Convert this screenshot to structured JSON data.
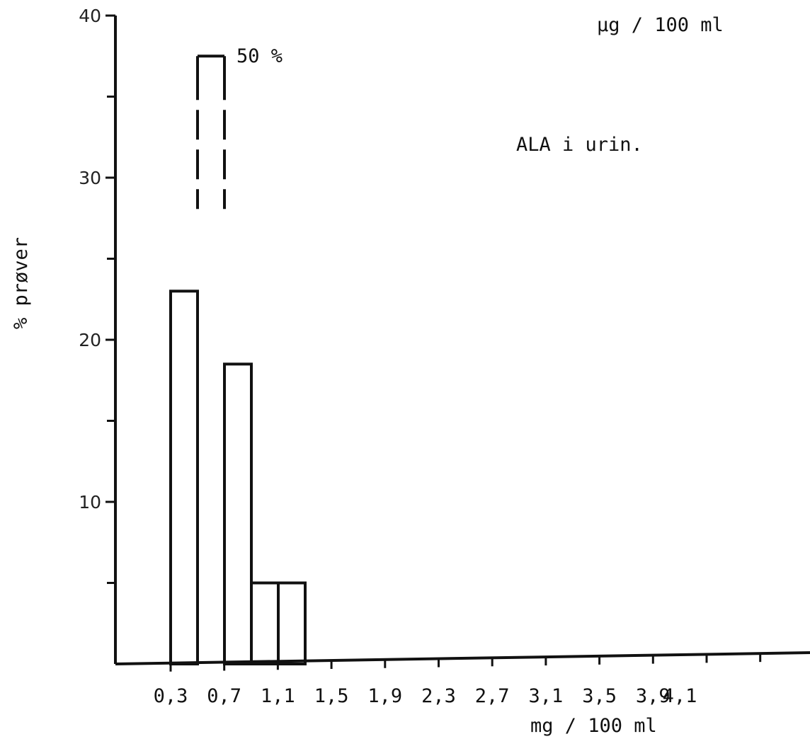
{
  "chart_data": {
    "type": "bar",
    "title": "ALA i urin.",
    "ylabel": "% prøver",
    "xlabel": "mg / 100 ml",
    "top_unit_label": "µg / 100 ml",
    "peak_annotation": "50 %",
    "ylim": [
      0,
      40
    ],
    "y_ticks": [
      10,
      20,
      30,
      40
    ],
    "y_minor_ticks": [
      5,
      15,
      25,
      35
    ],
    "x_tick_labels": [
      "0,3",
      "0,7",
      "1,1",
      "1,5",
      "1,9",
      "2,3",
      "2,7",
      "3,1",
      "3,5",
      "3,9",
      "4,1"
    ],
    "x_ticks_total": 12,
    "bars": [
      {
        "value": 23,
        "span": [
          0.0,
          0.5
        ]
      },
      {
        "value": 37.5,
        "span": [
          0.5,
          1.0
        ],
        "broken": true
      },
      {
        "value": 18.5,
        "span": [
          1.0,
          1.5
        ]
      },
      {
        "value": 5,
        "span": [
          1.5,
          2.0
        ]
      },
      {
        "value": 5,
        "span": [
          2.0,
          2.5
        ]
      }
    ],
    "grid": false
  }
}
